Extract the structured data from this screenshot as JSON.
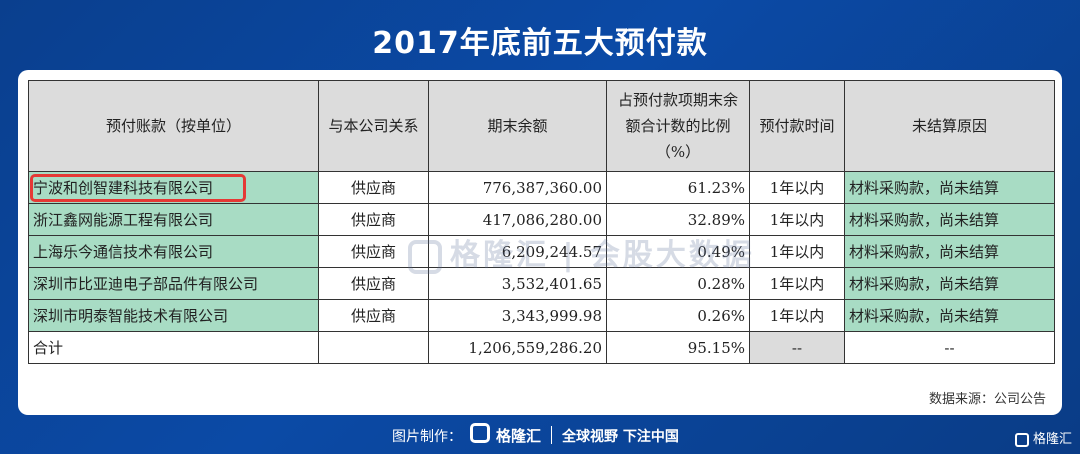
{
  "title": "2017年底前五大预付款",
  "headers": [
    "预付账款（按单位）",
    "与本公司关系",
    "期末余额",
    "占预付款项期末余额合计数的比例（%）",
    "预付款时间",
    "未结算原因"
  ],
  "rows": [
    {
      "name": "宁波和创智建科技有限公司",
      "relation": "供应商",
      "balance": "776,387,360.00",
      "ratio": "61.23%",
      "time": "1年以内",
      "reason": "材料采购款，尚未结算"
    },
    {
      "name": "浙江鑫网能源工程有限公司",
      "relation": "供应商",
      "balance": "417,086,280.00",
      "ratio": "32.89%",
      "time": "1年以内",
      "reason": "材料采购款，尚未结算"
    },
    {
      "name": "上海乐今通信技术有限公司",
      "relation": "供应商",
      "balance": "6,209,244.57",
      "ratio": "0.49%",
      "time": "1年以内",
      "reason": "材料采购款，尚未结算"
    },
    {
      "name": "深圳市比亚迪电子部品件有限公司",
      "relation": "供应商",
      "balance": "3,532,401.65",
      "ratio": "0.28%",
      "time": "1年以内",
      "reason": "材料采购款，尚未结算"
    },
    {
      "name": "深圳市明泰智能技术有限公司",
      "relation": "供应商",
      "balance": "3,343,999.98",
      "ratio": "0.26%",
      "time": "1年以内",
      "reason": "材料采购款，尚未结算"
    }
  ],
  "total": {
    "name": "合计",
    "relation": "",
    "balance": "1,206,559,286.20",
    "ratio": "95.15%",
    "time": "--",
    "reason": "--"
  },
  "source": "数据来源：公司公告",
  "watermark": "格隆汇 | 会股大数据",
  "footer": {
    "made_by": "图片制作：",
    "brand": "格隆汇",
    "slogan": "全球视野 下注中国"
  },
  "corner_brand": "格隆汇",
  "colors": {
    "background": "#0b4aa6",
    "header_fill": "#dcdcdc",
    "highlight_fill": "#a8dcc4",
    "highlight_border": "#e53935"
  }
}
